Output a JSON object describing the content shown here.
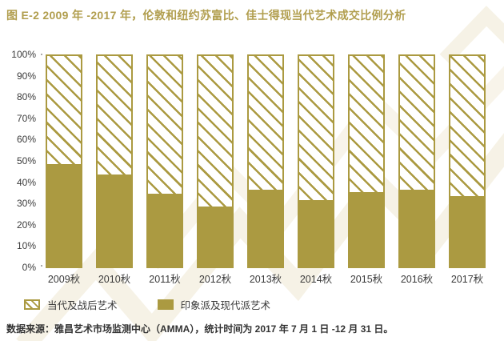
{
  "title": "图 E-2 2009 年 -2017 年，伦敦和纽约苏富比、佳士得现当代艺术成交比例分析",
  "colors": {
    "gold": "#ab9a41",
    "title_gold": "#b19e4e",
    "text_dark": "#3a3a3a",
    "watermark": "#f6f2e6"
  },
  "chart_data": {
    "type": "bar",
    "stacked": true,
    "orientation": "vertical",
    "categories": [
      "2009秋",
      "2010秋",
      "2011秋",
      "2012秋",
      "2013秋",
      "2014秋",
      "2015秋",
      "2016秋",
      "2017秋"
    ],
    "series": [
      {
        "name": "印象派及现代派艺术",
        "pattern": "solid",
        "color": "#ab9a41",
        "values": [
          48,
          43,
          34,
          28,
          36,
          31,
          35,
          36,
          33
        ]
      },
      {
        "name": "当代及战后艺术",
        "pattern": "diagonal-hatch",
        "color": "#ab9a41",
        "values": [
          52,
          57,
          66,
          72,
          64,
          69,
          65,
          64,
          67
        ]
      }
    ],
    "ylim": [
      0,
      100
    ],
    "ytick_labels": [
      "100%",
      "90%",
      "80%",
      "70%",
      "60%",
      "50%",
      "40%",
      "30%",
      "20%",
      "10%",
      "0%"
    ],
    "grid": false,
    "legend_position": "bottom-left"
  },
  "legend": {
    "items": [
      {
        "label": "当代及战后艺术",
        "swatch": "hatched"
      },
      {
        "label": "印象派及现代派艺术",
        "swatch": "solid"
      }
    ]
  },
  "source_note": "数据来源：雅昌艺术市场监测中心（AMMA），统计时间为 2017 年 7 月 1 日 -12 月 31 日。"
}
